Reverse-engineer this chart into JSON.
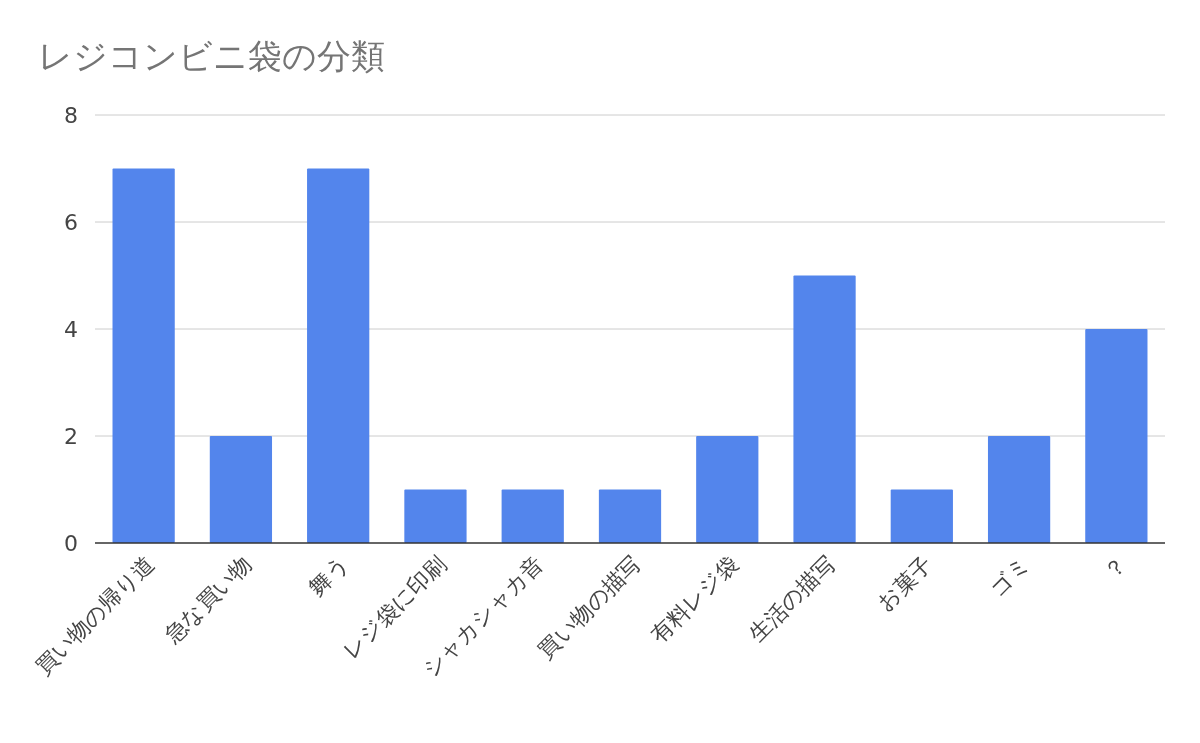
{
  "chart_data": {
    "type": "bar",
    "title": "レジコンビニ袋の分類",
    "categories": [
      "買い物の帰り道",
      "急な買い物",
      "舞う",
      "レジ袋に印刷",
      "シャカシャカ音",
      "買い物の描写",
      "有料レジ袋",
      "生活の描写",
      "お菓子",
      "ゴミ",
      "？"
    ],
    "values": [
      7,
      2,
      7,
      1,
      1,
      1,
      2,
      5,
      1,
      2,
      4
    ],
    "color": "#5385ec",
    "ylim": [
      0,
      8
    ],
    "yticks": [
      0,
      2,
      4,
      6,
      8
    ],
    "grid": "y"
  }
}
